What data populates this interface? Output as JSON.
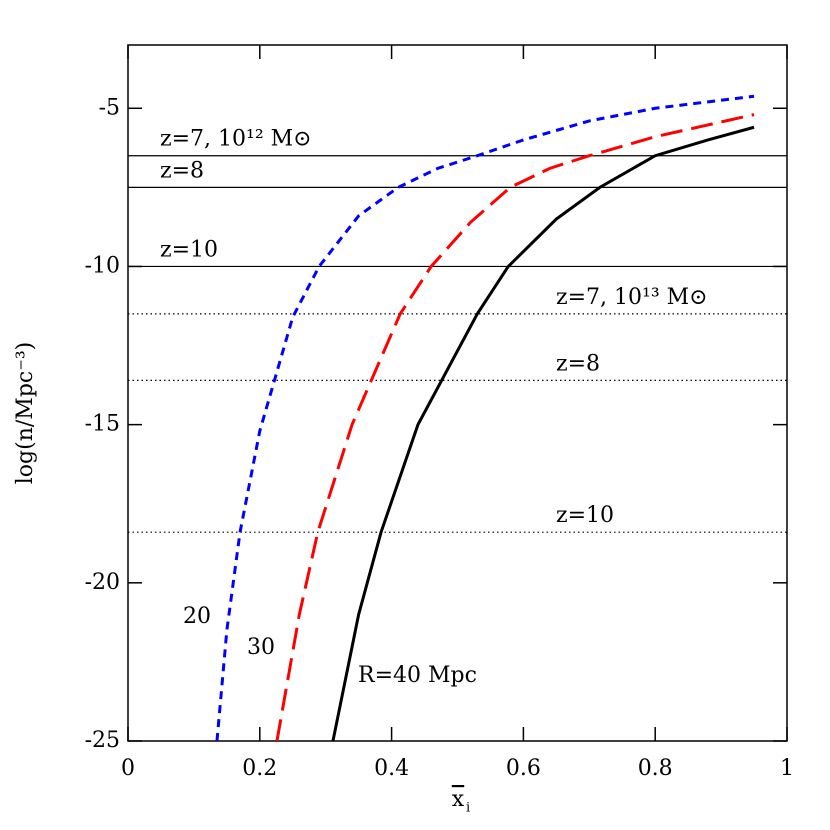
{
  "chart_data": {
    "type": "line",
    "xlabel": "x",
    "xlabel_sub": "i",
    "ylabel": "log(n/Mpc⁻³)",
    "xlim": [
      0,
      1
    ],
    "ylim": [
      -25,
      -3
    ],
    "xticks": [
      0,
      0.2,
      0.4,
      0.6,
      0.8,
      1
    ],
    "yticks": [
      -25,
      -20,
      -15,
      -10,
      -5
    ],
    "series": [
      {
        "name": "20",
        "color": "#0000ff",
        "dash": "8,6",
        "x": [
          0.135,
          0.15,
          0.17,
          0.2,
          0.25,
          0.29,
          0.35,
          0.41,
          0.47,
          0.53,
          0.6,
          0.7,
          0.8,
          0.95
        ],
        "values": [
          -25,
          -21.5,
          -18.4,
          -15.2,
          -11.6,
          -10,
          -8.4,
          -7.5,
          -6.9,
          -6.5,
          -6.0,
          -5.4,
          -5.0,
          -4.62
        ]
      },
      {
        "name": "30",
        "color": "#ff0000",
        "dash": "22,9",
        "x": [
          0.226,
          0.26,
          0.288,
          0.34,
          0.413,
          0.46,
          0.52,
          0.58,
          0.64,
          0.7,
          0.8,
          0.95
        ],
        "values": [
          -25,
          -21,
          -18.4,
          -15,
          -11.5,
          -10,
          -8.6,
          -7.5,
          -6.9,
          -6.5,
          -5.9,
          -5.2
        ]
      },
      {
        "name": "R=40 Mpc",
        "color": "#000000",
        "dash": "none",
        "x": [
          0.311,
          0.35,
          0.384,
          0.44,
          0.53,
          0.577,
          0.65,
          0.716,
          0.8,
          0.88,
          0.95
        ],
        "values": [
          -25,
          -21,
          -18.4,
          -15,
          -11.5,
          -10,
          -8.5,
          -7.5,
          -6.5,
          -6.0,
          -5.6
        ]
      }
    ],
    "hlines": [
      {
        "value": -6.5,
        "style": "solid",
        "label": "z=7, 10¹² M⊙"
      },
      {
        "value": -7.5,
        "style": "solid",
        "label": "z=8"
      },
      {
        "value": -10,
        "style": "solid",
        "label": "z=10"
      },
      {
        "value": -11.5,
        "style": "dotted",
        "label": "z=7, 10¹³ M⊙"
      },
      {
        "value": -13.6,
        "style": "dotted",
        "label": "z=8"
      },
      {
        "value": -18.4,
        "style": "dotted",
        "label": "z=10"
      }
    ]
  }
}
